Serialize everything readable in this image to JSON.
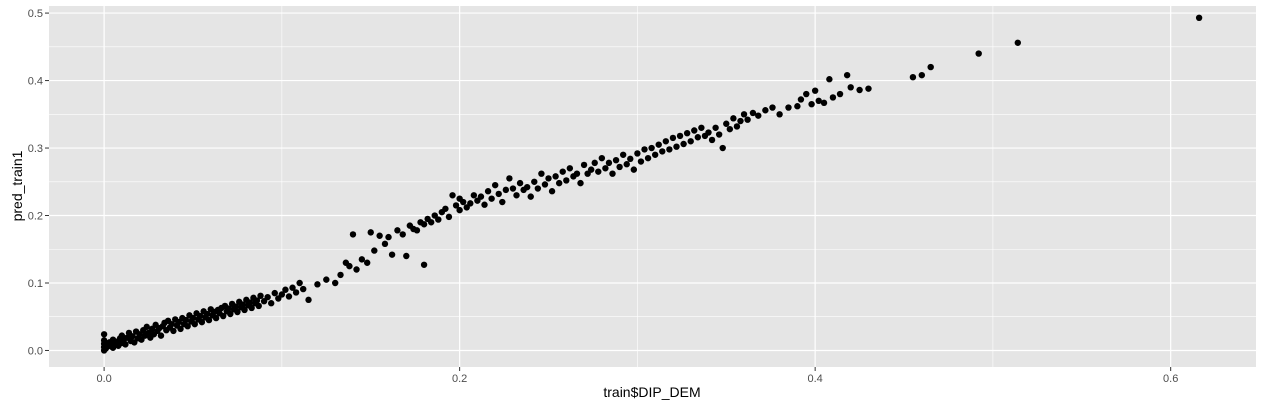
{
  "chart_data": {
    "type": "scatter",
    "xlabel": "train$DIP_DEM",
    "ylabel": "pred_train1",
    "xlim": [
      -0.031,
      0.648
    ],
    "ylim": [
      -0.0245,
      0.5105
    ],
    "x_ticks": [
      0.0,
      0.2,
      0.4,
      0.6
    ],
    "x_tick_labels": [
      "0.0",
      "0.2",
      "0.4",
      "0.6"
    ],
    "y_ticks": [
      0.0,
      0.1,
      0.2,
      0.3,
      0.4,
      0.5
    ],
    "y_tick_labels": [
      "0.0",
      "0.1",
      "0.2",
      "0.3",
      "0.4",
      "0.5"
    ],
    "grid": true,
    "panel_color": "#e5e5e5",
    "grid_color": "#ffffff",
    "point_color": "#000000",
    "points": [
      [
        0.0,
        0.0
      ],
      [
        0.0,
        0.005
      ],
      [
        0.0,
        0.01
      ],
      [
        0.0,
        0.015
      ],
      [
        0.0,
        0.024
      ],
      [
        0.001,
        0.003
      ],
      [
        0.002,
        0.008
      ],
      [
        0.003,
        0.012
      ],
      [
        0.004,
        0.006
      ],
      [
        0.005,
        0.004
      ],
      [
        0.005,
        0.016
      ],
      [
        0.006,
        0.009
      ],
      [
        0.007,
        0.013
      ],
      [
        0.008,
        0.007
      ],
      [
        0.009,
        0.018
      ],
      [
        0.01,
        0.011
      ],
      [
        0.01,
        0.022
      ],
      [
        0.011,
        0.015
      ],
      [
        0.012,
        0.009
      ],
      [
        0.013,
        0.019
      ],
      [
        0.014,
        0.026
      ],
      [
        0.015,
        0.014
      ],
      [
        0.016,
        0.021
      ],
      [
        0.017,
        0.012
      ],
      [
        0.018,
        0.028
      ],
      [
        0.019,
        0.018
      ],
      [
        0.02,
        0.024
      ],
      [
        0.021,
        0.016
      ],
      [
        0.022,
        0.03
      ],
      [
        0.023,
        0.022
      ],
      [
        0.024,
        0.035
      ],
      [
        0.025,
        0.026
      ],
      [
        0.026,
        0.019
      ],
      [
        0.027,
        0.032
      ],
      [
        0.028,
        0.024
      ],
      [
        0.029,
        0.038
      ],
      [
        0.03,
        0.029
      ],
      [
        0.031,
        0.033
      ],
      [
        0.032,
        0.022
      ],
      [
        0.033,
        0.036
      ],
      [
        0.034,
        0.041
      ],
      [
        0.035,
        0.03
      ],
      [
        0.036,
        0.044
      ],
      [
        0.037,
        0.034
      ],
      [
        0.038,
        0.039
      ],
      [
        0.039,
        0.029
      ],
      [
        0.04,
        0.046
      ],
      [
        0.041,
        0.037
      ],
      [
        0.042,
        0.042
      ],
      [
        0.043,
        0.032
      ],
      [
        0.044,
        0.048
      ],
      [
        0.045,
        0.039
      ],
      [
        0.046,
        0.045
      ],
      [
        0.047,
        0.036
      ],
      [
        0.048,
        0.052
      ],
      [
        0.049,
        0.043
      ],
      [
        0.05,
        0.048
      ],
      [
        0.051,
        0.039
      ],
      [
        0.052,
        0.055
      ],
      [
        0.053,
        0.046
      ],
      [
        0.054,
        0.051
      ],
      [
        0.055,
        0.042
      ],
      [
        0.056,
        0.058
      ],
      [
        0.057,
        0.049
      ],
      [
        0.058,
        0.054
      ],
      [
        0.059,
        0.045
      ],
      [
        0.06,
        0.061
      ],
      [
        0.061,
        0.052
      ],
      [
        0.062,
        0.057
      ],
      [
        0.063,
        0.048
      ],
      [
        0.064,
        0.06
      ],
      [
        0.065,
        0.055
      ],
      [
        0.066,
        0.063
      ],
      [
        0.067,
        0.051
      ],
      [
        0.068,
        0.066
      ],
      [
        0.069,
        0.058
      ],
      [
        0.07,
        0.062
      ],
      [
        0.071,
        0.054
      ],
      [
        0.072,
        0.069
      ],
      [
        0.073,
        0.061
      ],
      [
        0.074,
        0.065
      ],
      [
        0.075,
        0.057
      ],
      [
        0.076,
        0.072
      ],
      [
        0.077,
        0.064
      ],
      [
        0.078,
        0.068
      ],
      [
        0.079,
        0.06
      ],
      [
        0.08,
        0.075
      ],
      [
        0.081,
        0.067
      ],
      [
        0.082,
        0.071
      ],
      [
        0.083,
        0.063
      ],
      [
        0.084,
        0.078
      ],
      [
        0.085,
        0.07
      ],
      [
        0.086,
        0.074
      ],
      [
        0.087,
        0.066
      ],
      [
        0.088,
        0.081
      ],
      [
        0.09,
        0.073
      ],
      [
        0.092,
        0.079
      ],
      [
        0.094,
        0.07
      ],
      [
        0.096,
        0.085
      ],
      [
        0.098,
        0.077
      ],
      [
        0.1,
        0.083
      ],
      [
        0.102,
        0.09
      ],
      [
        0.104,
        0.08
      ],
      [
        0.106,
        0.093
      ],
      [
        0.108,
        0.086
      ],
      [
        0.11,
        0.1
      ],
      [
        0.112,
        0.091
      ],
      [
        0.115,
        0.075
      ],
      [
        0.12,
        0.098
      ],
      [
        0.125,
        0.105
      ],
      [
        0.13,
        0.1
      ],
      [
        0.133,
        0.112
      ],
      [
        0.136,
        0.13
      ],
      [
        0.138,
        0.125
      ],
      [
        0.14,
        0.172
      ],
      [
        0.142,
        0.12
      ],
      [
        0.145,
        0.135
      ],
      [
        0.148,
        0.13
      ],
      [
        0.15,
        0.175
      ],
      [
        0.152,
        0.148
      ],
      [
        0.155,
        0.17
      ],
      [
        0.158,
        0.158
      ],
      [
        0.16,
        0.168
      ],
      [
        0.162,
        0.142
      ],
      [
        0.165,
        0.178
      ],
      [
        0.168,
        0.172
      ],
      [
        0.17,
        0.14
      ],
      [
        0.172,
        0.185
      ],
      [
        0.174,
        0.18
      ],
      [
        0.176,
        0.178
      ],
      [
        0.178,
        0.19
      ],
      [
        0.18,
        0.127
      ],
      [
        0.18,
        0.187
      ],
      [
        0.182,
        0.195
      ],
      [
        0.184,
        0.19
      ],
      [
        0.186,
        0.2
      ],
      [
        0.188,
        0.194
      ],
      [
        0.19,
        0.205
      ],
      [
        0.192,
        0.21
      ],
      [
        0.194,
        0.198
      ],
      [
        0.196,
        0.23
      ],
      [
        0.198,
        0.215
      ],
      [
        0.2,
        0.208
      ],
      [
        0.2,
        0.225
      ],
      [
        0.202,
        0.22
      ],
      [
        0.204,
        0.212
      ],
      [
        0.206,
        0.218
      ],
      [
        0.208,
        0.23
      ],
      [
        0.21,
        0.222
      ],
      [
        0.212,
        0.228
      ],
      [
        0.214,
        0.216
      ],
      [
        0.216,
        0.236
      ],
      [
        0.218,
        0.225
      ],
      [
        0.22,
        0.245
      ],
      [
        0.222,
        0.232
      ],
      [
        0.224,
        0.22
      ],
      [
        0.226,
        0.238
      ],
      [
        0.228,
        0.255
      ],
      [
        0.23,
        0.24
      ],
      [
        0.232,
        0.23
      ],
      [
        0.234,
        0.248
      ],
      [
        0.236,
        0.238
      ],
      [
        0.238,
        0.242
      ],
      [
        0.24,
        0.228
      ],
      [
        0.242,
        0.25
      ],
      [
        0.244,
        0.24
      ],
      [
        0.246,
        0.262
      ],
      [
        0.248,
        0.246
      ],
      [
        0.25,
        0.255
      ],
      [
        0.252,
        0.236
      ],
      [
        0.254,
        0.258
      ],
      [
        0.256,
        0.248
      ],
      [
        0.258,
        0.265
      ],
      [
        0.26,
        0.252
      ],
      [
        0.262,
        0.27
      ],
      [
        0.264,
        0.258
      ],
      [
        0.266,
        0.262
      ],
      [
        0.268,
        0.248
      ],
      [
        0.27,
        0.275
      ],
      [
        0.272,
        0.262
      ],
      [
        0.274,
        0.268
      ],
      [
        0.276,
        0.278
      ],
      [
        0.278,
        0.265
      ],
      [
        0.28,
        0.285
      ],
      [
        0.282,
        0.27
      ],
      [
        0.284,
        0.278
      ],
      [
        0.286,
        0.262
      ],
      [
        0.288,
        0.282
      ],
      [
        0.29,
        0.272
      ],
      [
        0.292,
        0.29
      ],
      [
        0.294,
        0.276
      ],
      [
        0.296,
        0.284
      ],
      [
        0.298,
        0.268
      ],
      [
        0.3,
        0.292
      ],
      [
        0.302,
        0.28
      ],
      [
        0.304,
        0.298
      ],
      [
        0.306,
        0.285
      ],
      [
        0.308,
        0.3
      ],
      [
        0.31,
        0.29
      ],
      [
        0.312,
        0.305
      ],
      [
        0.314,
        0.295
      ],
      [
        0.316,
        0.31
      ],
      [
        0.318,
        0.298
      ],
      [
        0.32,
        0.315
      ],
      [
        0.322,
        0.302
      ],
      [
        0.324,
        0.318
      ],
      [
        0.326,
        0.306
      ],
      [
        0.328,
        0.322
      ],
      [
        0.33,
        0.31
      ],
      [
        0.332,
        0.326
      ],
      [
        0.334,
        0.316
      ],
      [
        0.336,
        0.33
      ],
      [
        0.338,
        0.318
      ],
      [
        0.34,
        0.323
      ],
      [
        0.342,
        0.312
      ],
      [
        0.344,
        0.33
      ],
      [
        0.346,
        0.32
      ],
      [
        0.348,
        0.3
      ],
      [
        0.35,
        0.336
      ],
      [
        0.352,
        0.328
      ],
      [
        0.354,
        0.344
      ],
      [
        0.356,
        0.332
      ],
      [
        0.358,
        0.34
      ],
      [
        0.36,
        0.35
      ],
      [
        0.362,
        0.342
      ],
      [
        0.365,
        0.352
      ],
      [
        0.368,
        0.348
      ],
      [
        0.372,
        0.356
      ],
      [
        0.376,
        0.36
      ],
      [
        0.38,
        0.35
      ],
      [
        0.385,
        0.36
      ],
      [
        0.39,
        0.362
      ],
      [
        0.392,
        0.372
      ],
      [
        0.395,
        0.38
      ],
      [
        0.398,
        0.365
      ],
      [
        0.4,
        0.385
      ],
      [
        0.402,
        0.37
      ],
      [
        0.405,
        0.367
      ],
      [
        0.408,
        0.402
      ],
      [
        0.41,
        0.375
      ],
      [
        0.414,
        0.38
      ],
      [
        0.418,
        0.408
      ],
      [
        0.42,
        0.39
      ],
      [
        0.425,
        0.386
      ],
      [
        0.43,
        0.388
      ],
      [
        0.455,
        0.405
      ],
      [
        0.46,
        0.408
      ],
      [
        0.465,
        0.42
      ],
      [
        0.492,
        0.44
      ],
      [
        0.514,
        0.456
      ],
      [
        0.616,
        0.493
      ]
    ]
  }
}
